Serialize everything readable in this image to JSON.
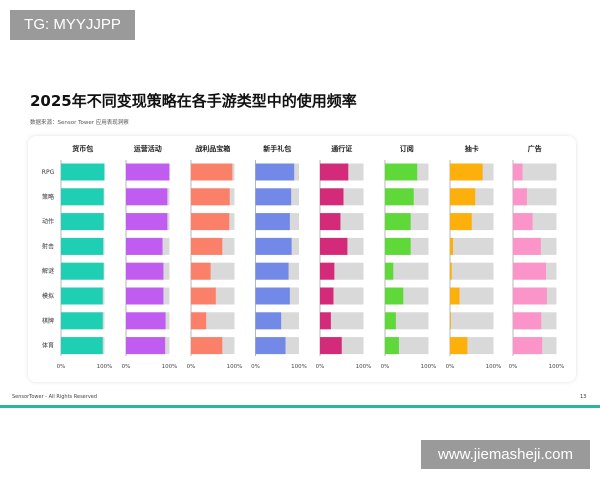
{
  "watermark_top": "TG: MYYJJPP",
  "watermark_bottom": "www.jiemasheji.com",
  "footer": {
    "text": "SensorTower - All Rights Reserved",
    "page": "13"
  },
  "chart_data": {
    "type": "bar",
    "orientation": "horizontal",
    "layout": "small-multiples",
    "title": "2025年不同变现策略在各手游类型中的使用频率",
    "subtitle": "数据来源：Sensor Tower 应用表现洞察",
    "categories": [
      "RPG",
      "策略",
      "动作",
      "射击",
      "解谜",
      "模拟",
      "棋牌",
      "体育"
    ],
    "xlim": [
      0,
      100
    ],
    "tick_labels": [
      "0%",
      "100%"
    ],
    "background_color": "#d9d9d9",
    "series": [
      {
        "name": "货币包",
        "color": "#1fcfb4",
        "values": [
          100,
          98,
          98,
          97,
          98,
          96,
          96,
          96
        ]
      },
      {
        "name": "运营活动",
        "color": "#c05cf0",
        "values": [
          100,
          95,
          95,
          84,
          86,
          86,
          91,
          90
        ]
      },
      {
        "name": "战利品宝箱",
        "color": "#fa8069",
        "values": [
          95,
          89,
          88,
          72,
          45,
          57,
          35,
          72
        ]
      },
      {
        "name": "新手礼包",
        "color": "#7289e8",
        "values": [
          89,
          82,
          79,
          83,
          76,
          79,
          59,
          69
        ]
      },
      {
        "name": "通行证",
        "color": "#d42a7a",
        "values": [
          65,
          54,
          47,
          63,
          33,
          31,
          25,
          50
        ]
      },
      {
        "name": "订阅",
        "color": "#5fd83a",
        "values": [
          74,
          66,
          59,
          59,
          19,
          42,
          25,
          32
        ]
      },
      {
        "name": "抽卡",
        "color": "#fdaf0c",
        "values": [
          75,
          58,
          50,
          7,
          4,
          22,
          2,
          40
        ]
      },
      {
        "name": "广告",
        "color": "#fb94c8",
        "values": [
          22,
          32,
          45,
          64,
          76,
          78,
          65,
          67
        ]
      }
    ]
  }
}
